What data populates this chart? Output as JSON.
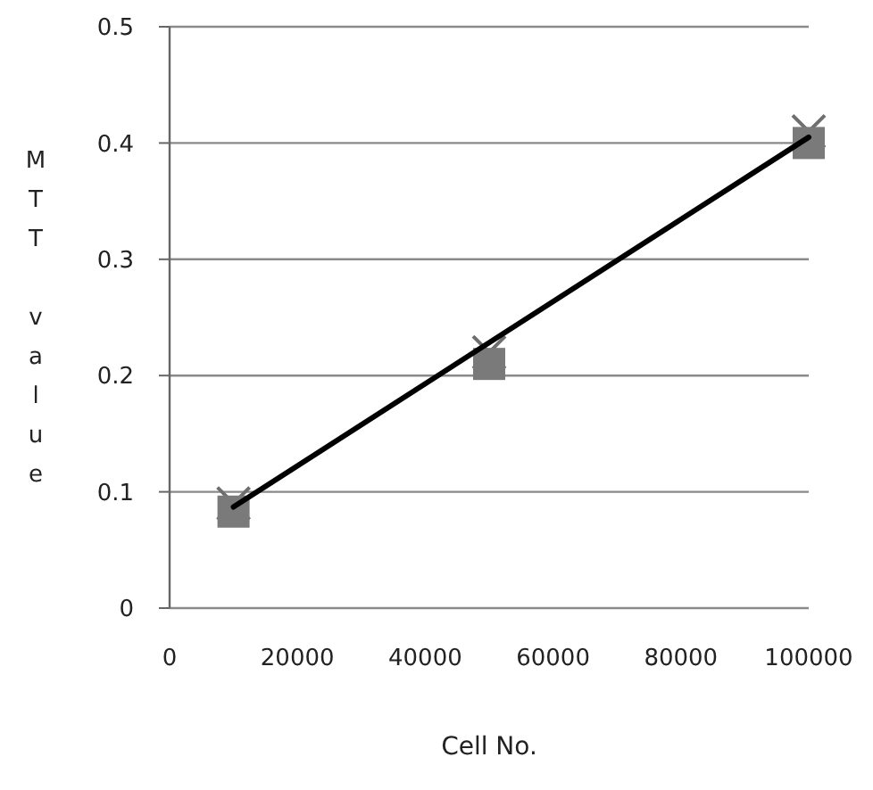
{
  "chart_data": {
    "type": "scatter",
    "xlabel": "Cell No.",
    "ylabel": "MTT value",
    "xlim": [
      0,
      100000
    ],
    "ylim": [
      0,
      0.5
    ],
    "xticks": [
      0,
      20000,
      40000,
      60000,
      80000,
      100000
    ],
    "yticks": [
      0,
      0.1,
      0.2,
      0.3,
      0.4,
      0.5
    ],
    "grid": "y",
    "series": [
      {
        "marker": "cross",
        "color": "#6e6e6e",
        "x": [
          10000,
          50000,
          100000
        ],
        "values": [
          0.09,
          0.22,
          0.41
        ]
      },
      {
        "marker": "square",
        "color": "#7a7a7a",
        "x": [
          10000,
          50000,
          100000
        ],
        "values": [
          0.083,
          0.21,
          0.4
        ]
      },
      {
        "type": "line",
        "marker": "none",
        "color": "#000000",
        "line_style": "solid",
        "x": [
          10000,
          100000
        ],
        "values": [
          0.087,
          0.405
        ]
      }
    ]
  }
}
